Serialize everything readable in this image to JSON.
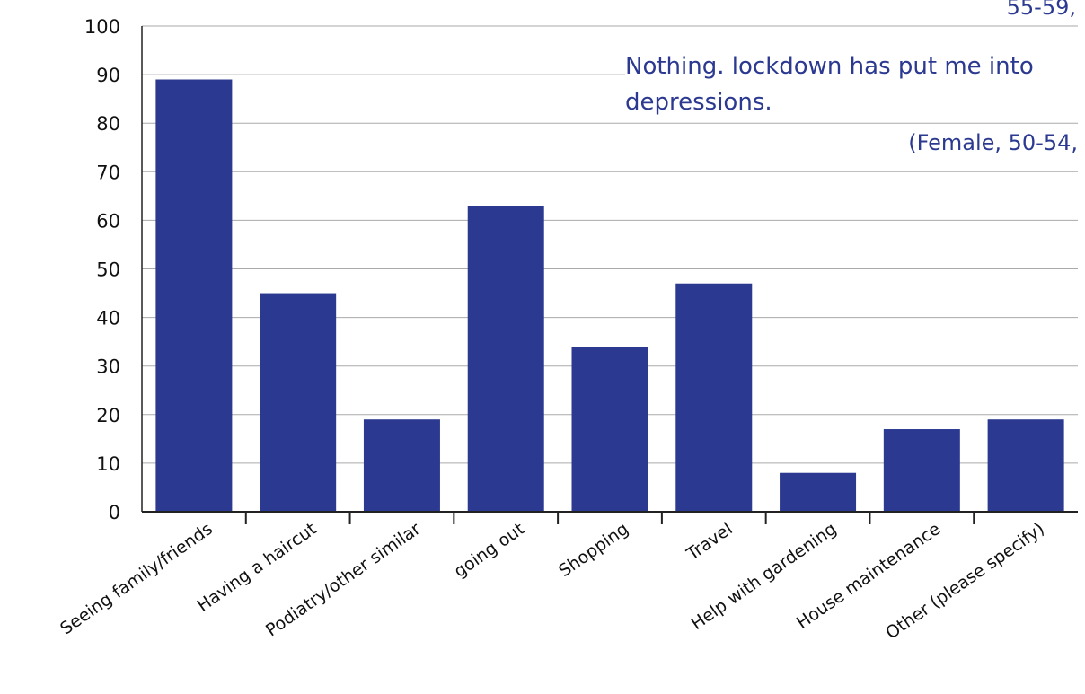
{
  "chart_data": {
    "type": "bar",
    "categories": [
      "Seeing family/friends",
      "Having a haircut",
      "Podiatry/other similar",
      "going out",
      "Shopping",
      "Travel",
      "Help with gardening",
      "House maintenance",
      "Other (please specify)"
    ],
    "values": [
      89,
      45,
      19,
      63,
      34,
      47,
      8,
      17,
      19
    ],
    "ylim": [
      0,
      100
    ],
    "yticks": [
      "0",
      "10",
      "20",
      "30",
      "40",
      "50",
      "60",
      "70",
      "80",
      "90",
      "100"
    ],
    "grid": true,
    "bar_color": "#2b3990",
    "title": "",
    "xlabel": "",
    "ylabel": ""
  },
  "quote_box": {
    "attribution_top": "55-59,",
    "quote": "Nothing. lockdown has put me into depressions.",
    "attribution": "(Female, 50-54,"
  },
  "colors": {
    "accent": "#2b3990",
    "grid": "#aaaaaa",
    "axis": "#222222"
  }
}
